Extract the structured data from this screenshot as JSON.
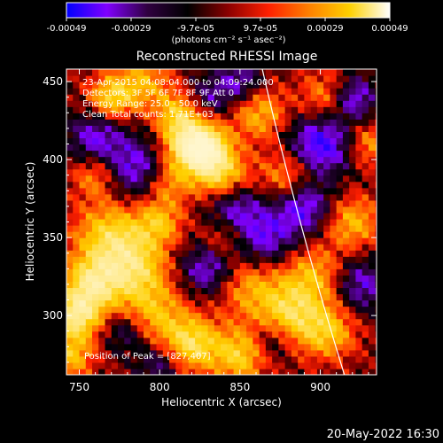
{
  "chart_data": {
    "type": "heatmap",
    "title": "Reconstructed RHESSI Image",
    "xlabel": "Heliocentric X (arcsec)",
    "ylabel": "Heliocentric Y (arcsec)",
    "xlim": [
      742,
      935
    ],
    "ylim": [
      262,
      458
    ],
    "xticks": [
      750,
      800,
      850,
      900
    ],
    "yticks": [
      300,
      350,
      400,
      450
    ],
    "colorbar": {
      "label": "(photons cm⁻² s⁻¹ asec⁻²)",
      "ticks": [
        "-0.00049",
        "-0.00029",
        "-9.7e-05",
        "9.7e-05",
        "0.00029",
        "0.00049"
      ],
      "range": [
        -0.00049,
        0.00049
      ],
      "colors": [
        "#0000ff",
        "#8000ff",
        "#300040",
        "#000000",
        "#8b0000",
        "#ff2000",
        "#ff8000",
        "#ffd000",
        "#ffffff"
      ]
    },
    "annotations": [
      "23-Apr-2015 04:08:04.000 to 04:09:24.000",
      "Detectors: 3F 5F 6F 7F 8F 9F Att 0",
      "Energy Range: 25.0 - 50.0 keV",
      "Clean     Total counts: 1.71E+03",
      "Position of Peak = [827,407]"
    ],
    "peak": [
      827,
      407
    ],
    "limb_arc": [
      [
        863,
        462
      ],
      [
        915,
        262
      ]
    ],
    "hotspots": [
      {
        "x": 828,
        "y": 407,
        "v": 1.0,
        "r": 10
      },
      {
        "x": 818,
        "y": 410,
        "v": 0.85,
        "r": 12
      },
      {
        "x": 838,
        "y": 390,
        "v": 0.75,
        "r": 12
      },
      {
        "x": 812,
        "y": 430,
        "v": 0.6,
        "r": 10
      },
      {
        "x": 770,
        "y": 350,
        "v": 0.75,
        "r": 16
      },
      {
        "x": 758,
        "y": 320,
        "v": 0.9,
        "r": 12
      },
      {
        "x": 748,
        "y": 300,
        "v": 0.95,
        "r": 10
      },
      {
        "x": 785,
        "y": 330,
        "v": 0.65,
        "r": 14
      },
      {
        "x": 795,
        "y": 300,
        "v": 0.6,
        "r": 15
      },
      {
        "x": 820,
        "y": 282,
        "v": 0.8,
        "r": 12
      },
      {
        "x": 850,
        "y": 275,
        "v": 0.7,
        "r": 12
      },
      {
        "x": 880,
        "y": 300,
        "v": 0.75,
        "r": 14
      },
      {
        "x": 905,
        "y": 290,
        "v": 0.6,
        "r": 12
      },
      {
        "x": 895,
        "y": 325,
        "v": 0.55,
        "r": 14
      },
      {
        "x": 855,
        "y": 320,
        "v": 0.5,
        "r": 14
      },
      {
        "x": 770,
        "y": 440,
        "v": 0.7,
        "r": 10
      },
      {
        "x": 790,
        "y": 450,
        "v": 0.5,
        "r": 12
      },
      {
        "x": 862,
        "y": 430,
        "v": 0.55,
        "r": 12
      },
      {
        "x": 880,
        "y": 390,
        "v": 0.5,
        "r": 12
      },
      {
        "x": 905,
        "y": 440,
        "v": 0.5,
        "r": 12
      },
      {
        "x": 930,
        "y": 410,
        "v": 0.45,
        "r": 10
      },
      {
        "x": 920,
        "y": 360,
        "v": 0.55,
        "r": 12
      },
      {
        "x": 800,
        "y": 360,
        "v": 0.55,
        "r": 10
      },
      {
        "x": 805,
        "y": 385,
        "v": 0.45,
        "r": 10
      },
      {
        "x": 840,
        "y": 350,
        "v": 0.4,
        "r": 10
      },
      {
        "x": 760,
        "y": 390,
        "v": 0.45,
        "r": 10
      },
      {
        "x": 745,
        "y": 275,
        "v": 0.6,
        "r": 10
      }
    ],
    "coldspots": [
      {
        "x": 900,
        "y": 410,
        "v": -0.8,
        "r": 14
      },
      {
        "x": 920,
        "y": 440,
        "v": -0.7,
        "r": 10
      },
      {
        "x": 890,
        "y": 370,
        "v": -0.65,
        "r": 12
      },
      {
        "x": 785,
        "y": 395,
        "v": -0.6,
        "r": 14
      },
      {
        "x": 760,
        "y": 415,
        "v": -0.55,
        "r": 12
      },
      {
        "x": 830,
        "y": 330,
        "v": -0.6,
        "r": 12
      },
      {
        "x": 845,
        "y": 370,
        "v": -0.55,
        "r": 12
      },
      {
        "x": 780,
        "y": 290,
        "v": -0.5,
        "r": 10
      },
      {
        "x": 865,
        "y": 350,
        "v": -0.6,
        "r": 14
      },
      {
        "x": 925,
        "y": 320,
        "v": -0.55,
        "r": 12
      },
      {
        "x": 800,
        "y": 270,
        "v": -0.45,
        "r": 10
      },
      {
        "x": 850,
        "y": 450,
        "v": -0.5,
        "r": 10
      },
      {
        "x": 830,
        "y": 440,
        "v": -0.4,
        "r": 10
      },
      {
        "x": 870,
        "y": 285,
        "v": -0.45,
        "r": 10
      }
    ]
  },
  "footer": {
    "timestamp": "20-May-2022 16:30"
  }
}
